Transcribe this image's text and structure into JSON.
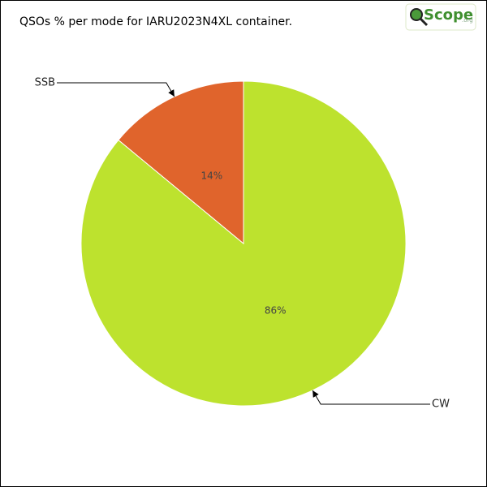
{
  "chart_data": {
    "type": "pie",
    "title": "QSOs % per mode for IARU2023N4XL container.",
    "logo": "Scope",
    "logo_suffix": ".org",
    "categories": [
      "CW",
      "SSB"
    ],
    "values": [
      86,
      14
    ],
    "value_labels": [
      "86%",
      "14%"
    ],
    "colors": [
      "#bde22e",
      "#e0642c"
    ]
  }
}
